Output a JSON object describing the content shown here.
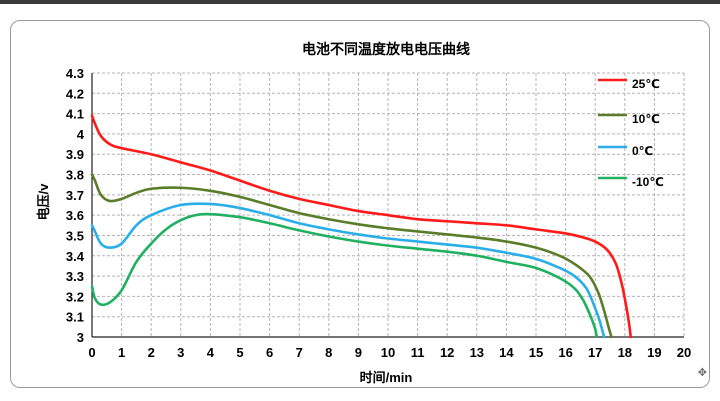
{
  "chart_data": {
    "type": "line",
    "title": "电池不同温度放电电压曲线",
    "xlabel": "时间/min",
    "ylabel": "电压/v",
    "xlim": [
      0,
      20
    ],
    "ylim": [
      3,
      4.3
    ],
    "x_ticks": [
      "0",
      "1",
      "2",
      "3",
      "4",
      "5",
      "6",
      "7",
      "8",
      "9",
      "10",
      "11",
      "12",
      "13",
      "14",
      "15",
      "16",
      "17",
      "18",
      "19",
      "20"
    ],
    "y_ticks": [
      "3",
      "3.1",
      "3.2",
      "3.3",
      "3.4",
      "3.5",
      "3.6",
      "3.7",
      "3.8",
      "3.9",
      "4",
      "4.1",
      "4.2",
      "4.3"
    ],
    "grid": true,
    "legend_position": "top-right",
    "series": [
      {
        "name": "25℃",
        "color": "#ff1a1a",
        "points": [
          [
            0,
            4.09
          ],
          [
            0.1,
            4.05
          ],
          [
            0.3,
            3.99
          ],
          [
            0.6,
            3.95
          ],
          [
            1,
            3.93
          ],
          [
            2,
            3.9
          ],
          [
            3,
            3.86
          ],
          [
            4,
            3.82
          ],
          [
            5,
            3.77
          ],
          [
            6,
            3.72
          ],
          [
            7,
            3.68
          ],
          [
            8,
            3.65
          ],
          [
            9,
            3.62
          ],
          [
            10,
            3.6
          ],
          [
            11,
            3.58
          ],
          [
            12,
            3.57
          ],
          [
            13,
            3.56
          ],
          [
            14,
            3.55
          ],
          [
            15,
            3.53
          ],
          [
            16,
            3.51
          ],
          [
            16.6,
            3.49
          ],
          [
            17,
            3.47
          ],
          [
            17.4,
            3.43
          ],
          [
            17.7,
            3.36
          ],
          [
            17.9,
            3.26
          ],
          [
            18.05,
            3.15
          ],
          [
            18.15,
            3.06
          ],
          [
            18.2,
            3.0
          ]
        ]
      },
      {
        "name": "10℃",
        "color": "#5a7d2a",
        "points": [
          [
            0,
            3.8
          ],
          [
            0.1,
            3.77
          ],
          [
            0.3,
            3.7
          ],
          [
            0.6,
            3.67
          ],
          [
            1,
            3.68
          ],
          [
            1.5,
            3.71
          ],
          [
            2,
            3.73
          ],
          [
            3,
            3.735
          ],
          [
            4,
            3.72
          ],
          [
            5,
            3.69
          ],
          [
            6,
            3.65
          ],
          [
            7,
            3.61
          ],
          [
            8,
            3.58
          ],
          [
            9,
            3.555
          ],
          [
            10,
            3.535
          ],
          [
            11,
            3.52
          ],
          [
            12,
            3.505
          ],
          [
            13,
            3.49
          ],
          [
            14,
            3.47
          ],
          [
            15,
            3.44
          ],
          [
            15.8,
            3.4
          ],
          [
            16.3,
            3.36
          ],
          [
            16.8,
            3.3
          ],
          [
            17.1,
            3.22
          ],
          [
            17.3,
            3.13
          ],
          [
            17.45,
            3.05
          ],
          [
            17.55,
            3.0
          ]
        ]
      },
      {
        "name": "0℃",
        "color": "#2aaeea",
        "points": [
          [
            0,
            3.55
          ],
          [
            0.1,
            3.52
          ],
          [
            0.3,
            3.46
          ],
          [
            0.6,
            3.44
          ],
          [
            1,
            3.46
          ],
          [
            1.5,
            3.55
          ],
          [
            2,
            3.6
          ],
          [
            3,
            3.65
          ],
          [
            4,
            3.655
          ],
          [
            5,
            3.635
          ],
          [
            6,
            3.6
          ],
          [
            7,
            3.56
          ],
          [
            8,
            3.53
          ],
          [
            9,
            3.505
          ],
          [
            10,
            3.485
          ],
          [
            11,
            3.47
          ],
          [
            12,
            3.455
          ],
          [
            13,
            3.44
          ],
          [
            14,
            3.415
          ],
          [
            15,
            3.385
          ],
          [
            15.8,
            3.34
          ],
          [
            16.3,
            3.3
          ],
          [
            16.7,
            3.24
          ],
          [
            16.95,
            3.16
          ],
          [
            17.15,
            3.08
          ],
          [
            17.3,
            3.0
          ]
        ]
      },
      {
        "name": "-10℃",
        "color": "#1fb060",
        "points": [
          [
            0,
            3.25
          ],
          [
            0.1,
            3.19
          ],
          [
            0.3,
            3.16
          ],
          [
            0.6,
            3.17
          ],
          [
            1,
            3.23
          ],
          [
            1.5,
            3.37
          ],
          [
            2,
            3.46
          ],
          [
            2.5,
            3.53
          ],
          [
            3,
            3.575
          ],
          [
            3.5,
            3.6
          ],
          [
            4,
            3.605
          ],
          [
            5,
            3.59
          ],
          [
            6,
            3.56
          ],
          [
            7,
            3.525
          ],
          [
            8,
            3.495
          ],
          [
            9,
            3.47
          ],
          [
            10,
            3.45
          ],
          [
            11,
            3.435
          ],
          [
            12,
            3.42
          ],
          [
            13,
            3.4
          ],
          [
            14,
            3.37
          ],
          [
            15,
            3.34
          ],
          [
            15.8,
            3.29
          ],
          [
            16.3,
            3.24
          ],
          [
            16.6,
            3.18
          ],
          [
            16.85,
            3.1
          ],
          [
            17.0,
            3.04
          ],
          [
            17.05,
            3.0
          ]
        ]
      }
    ]
  }
}
